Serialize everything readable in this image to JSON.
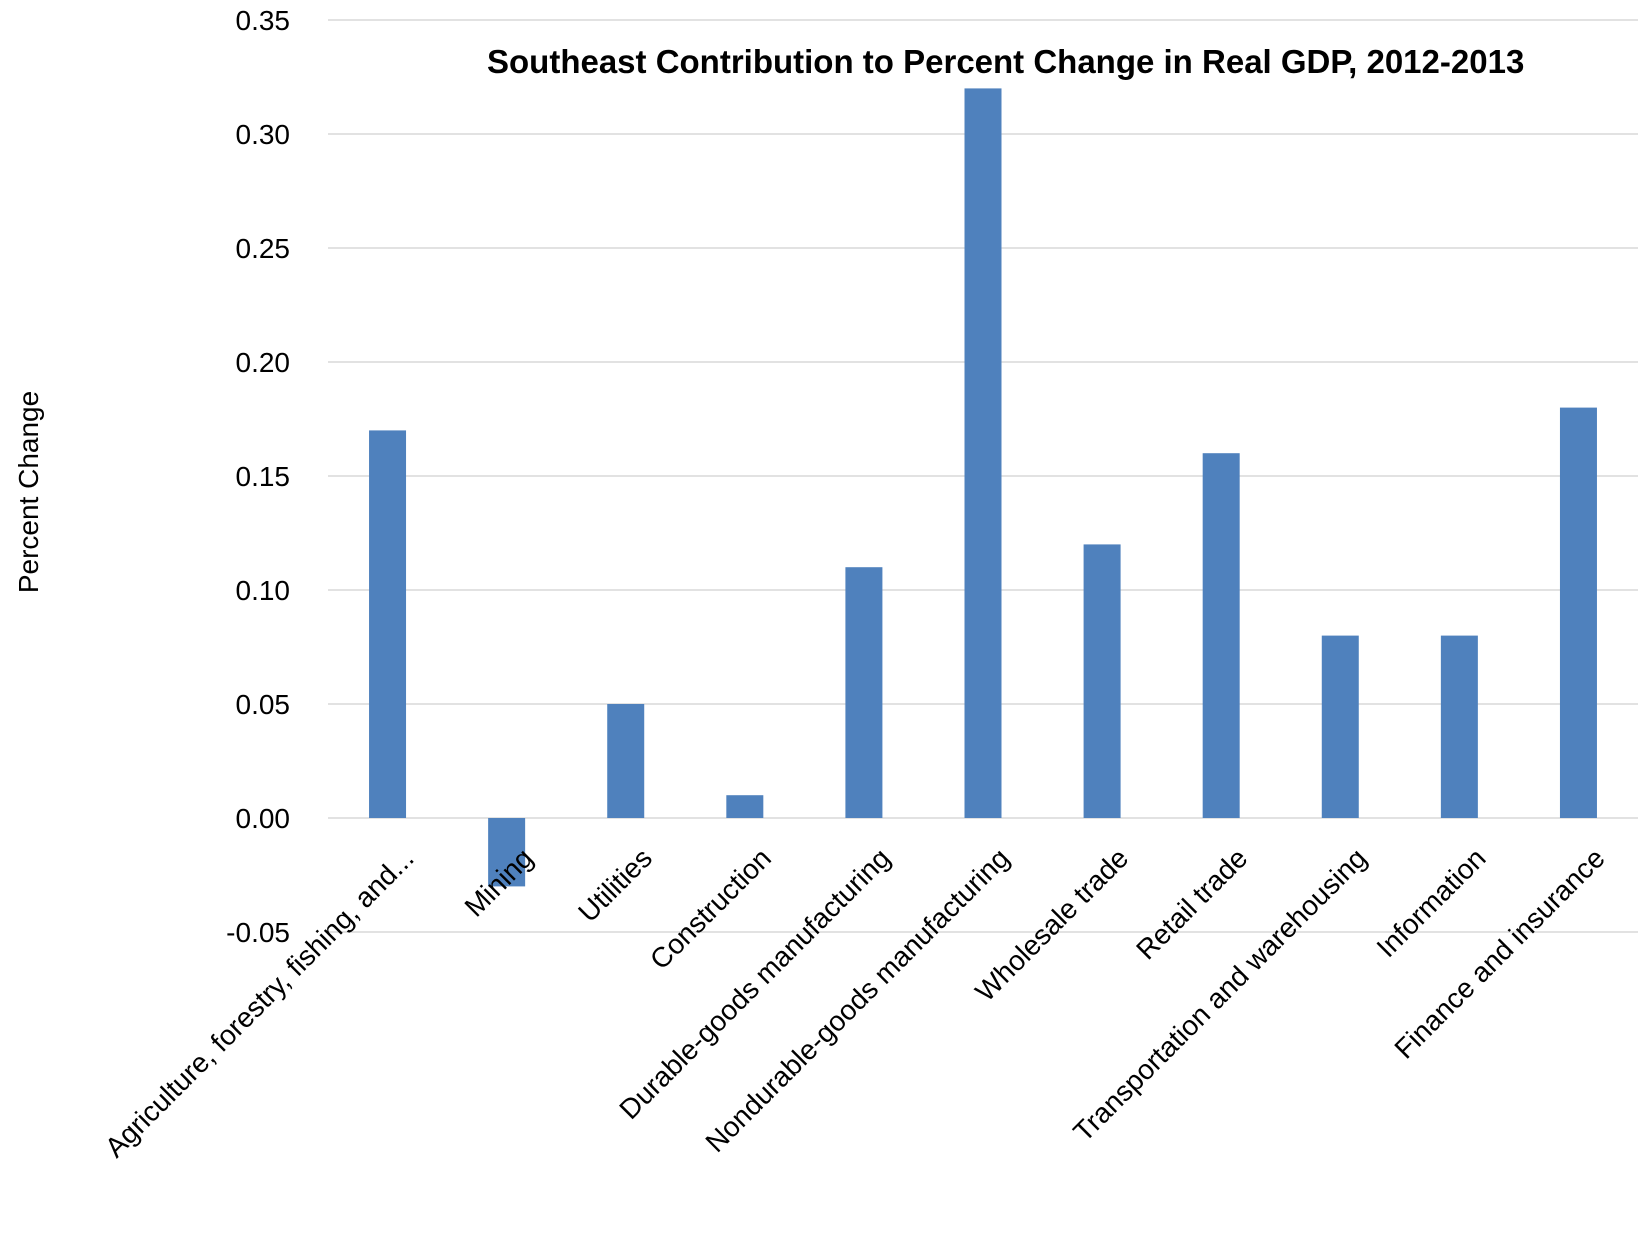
{
  "chart_data": {
    "type": "bar",
    "title": "Southeast Contribution to Percent Change in Real GDP, 2012-2013",
    "xlabel": "",
    "ylabel": "Percent Change",
    "categories": [
      "Agriculture, forestry, fishing, and...",
      "Mining",
      "Utilities",
      "Construction",
      "Durable-goods manufacturing",
      "Nondurable-goods manufacturing",
      "Wholesale trade",
      "Retail trade",
      "Transportation and warehousing",
      "Information",
      "Finance and insurance"
    ],
    "values": [
      0.17,
      -0.03,
      0.05,
      0.01,
      0.11,
      0.32,
      0.12,
      0.16,
      0.08,
      0.08,
      0.18
    ],
    "ylim": [
      -0.05,
      0.35
    ],
    "yticks": [
      "-0.05",
      "0.00",
      "0.05",
      "0.10",
      "0.15",
      "0.20",
      "0.25",
      "0.30",
      "0.35"
    ],
    "grid": true,
    "legend": "none",
    "bar_color": "#4f81bd",
    "grid_color": "#d9d9d9"
  }
}
